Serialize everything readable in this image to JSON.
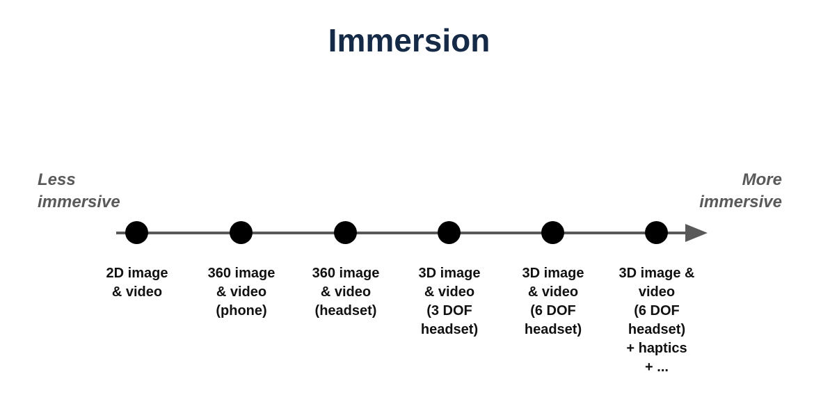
{
  "title": "Immersion",
  "axis": {
    "left_label": [
      "Less",
      "immersive"
    ],
    "right_label": [
      "More",
      "immersive"
    ]
  },
  "stages": [
    {
      "lines": [
        "2D image",
        "& video"
      ]
    },
    {
      "lines": [
        "360 image",
        "& video",
        "(phone)"
      ]
    },
    {
      "lines": [
        "360 image",
        "& video",
        "(headset)"
      ]
    },
    {
      "lines": [
        "3D image",
        "& video",
        "(3 DOF",
        "headset)"
      ]
    },
    {
      "lines": [
        "3D image",
        "& video",
        "(6 DOF",
        "headset)"
      ]
    },
    {
      "lines": [
        "3D image &",
        "video",
        "(6 DOF",
        "headset)",
        "+ haptics",
        "+ ..."
      ]
    }
  ],
  "colors": {
    "title": "#152a47",
    "axis": "#595959",
    "dot": "#000000",
    "end_label": "#595959"
  }
}
